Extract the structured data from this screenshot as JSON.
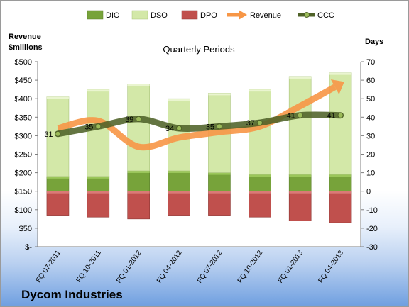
{
  "chart_data": {
    "type": "bar",
    "title": "Quarterly Periods",
    "company": "Dycom Industries",
    "y_left_label_line1": "Revenue",
    "y_left_label_line2": "$millions",
    "y_right_label": "Days",
    "categories": [
      "FQ 07-2011",
      "FQ 10-2011",
      "FQ 01-2012",
      "FQ 04-2012",
      "FQ 07-2012",
      "FQ 10-2012",
      "FQ 01-2013",
      "FQ 04-2013"
    ],
    "ylim_left": [
      0,
      500
    ],
    "ylim_right": [
      -30,
      70
    ],
    "left_ticks": [
      "$-",
      "$50",
      "$100",
      "$150",
      "$200",
      "$250",
      "$300",
      "$350",
      "$400",
      "$450",
      "$500"
    ],
    "right_ticks": [
      "-30",
      "-20",
      "-10",
      "0",
      "10",
      "20",
      "30",
      "40",
      "50",
      "60",
      "70"
    ],
    "legend": {
      "position": "top",
      "items": [
        {
          "name": "DIO",
          "kind": "bar",
          "color": "#77a33a"
        },
        {
          "name": "DSO",
          "kind": "bar",
          "color": "#d3e8a8"
        },
        {
          "name": "DPO",
          "kind": "bar",
          "color": "#c0504d"
        },
        {
          "name": "Revenue",
          "kind": "arrow",
          "color": "#f79646"
        },
        {
          "name": "CCC",
          "kind": "line",
          "color": "#4f6228"
        }
      ]
    },
    "series": [
      {
        "name": "DIO",
        "axis": "right",
        "values": [
          8,
          8,
          11,
          11,
          10,
          9,
          9,
          9
        ]
      },
      {
        "name": "DSO",
        "axis": "right",
        "values": [
          43,
          47,
          47,
          39,
          43,
          46,
          53,
          55
        ]
      },
      {
        "name": "DPO",
        "axis": "right",
        "values": [
          -13,
          -14,
          -15,
          -13,
          -13,
          -14,
          -16,
          -17
        ]
      },
      {
        "name": "Revenue",
        "axis": "left",
        "values": [
          320,
          340,
          270,
          295,
          310,
          325,
          380,
          440
        ]
      },
      {
        "name": "CCC",
        "axis": "right",
        "values": [
          31,
          35,
          39,
          34,
          35,
          37,
          41,
          41
        ],
        "labels": [
          "31",
          "35",
          "39",
          "34",
          "35",
          "37",
          "41",
          "41"
        ]
      }
    ],
    "colors": {
      "dio_fill": "#77a33a",
      "dio_top": "#9bc75a",
      "dso_fill": "#d3e8a8",
      "dso_top": "#eaf5d0",
      "dpo_fill": "#c0504d",
      "dpo_top": "#d97a76",
      "revenue": "#f79646",
      "ccc": "#4f6228",
      "ccc_marker": "#9bbb59",
      "plot_bg": "#ffffff",
      "gridline": "#d9d9d9"
    },
    "grid": false
  }
}
